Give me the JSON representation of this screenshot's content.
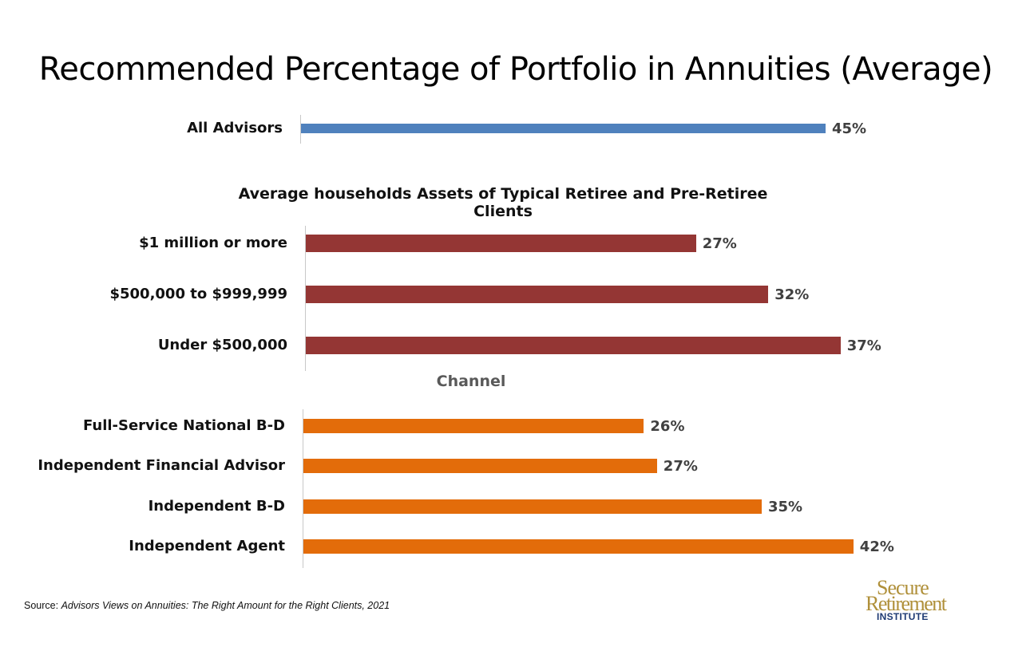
{
  "title": "Recommended Percentage of Portfolio in Annuities (Average)",
  "source": {
    "prefix": "Source: ",
    "citation": "Advisors Views on Annuities: The Right Amount for the Right Clients, 2021"
  },
  "logo": {
    "line1": "Secure",
    "line2": "Retirement",
    "line3": "INSTITUTE"
  },
  "colors": {
    "overall": "#4f81bd",
    "assets": "#943634",
    "channel": "#e36c0a"
  },
  "chart_data": [
    {
      "type": "bar",
      "orientation": "horizontal",
      "title": "",
      "categories": [
        "All Advisors"
      ],
      "values": [
        45
      ],
      "value_labels": [
        "45%"
      ],
      "unit": "%"
    },
    {
      "type": "bar",
      "orientation": "horizontal",
      "title": "Average households Assets of Typical Retiree and Pre-Retiree Clients",
      "categories": [
        "$1 million or more",
        "$500,000 to $999,999",
        "Under $500,000"
      ],
      "values": [
        27,
        32,
        37
      ],
      "value_labels": [
        "27%",
        "32%",
        "37%"
      ],
      "unit": "%"
    },
    {
      "type": "bar",
      "orientation": "horizontal",
      "title": "Channel",
      "categories": [
        "Full-Service National B-D",
        "Independent Financial Advisor",
        "Independent B-D",
        "Independent Agent"
      ],
      "values": [
        26,
        27,
        35,
        42
      ],
      "value_labels": [
        "26%",
        "27%",
        "35%",
        "42%"
      ],
      "unit": "%"
    }
  ]
}
